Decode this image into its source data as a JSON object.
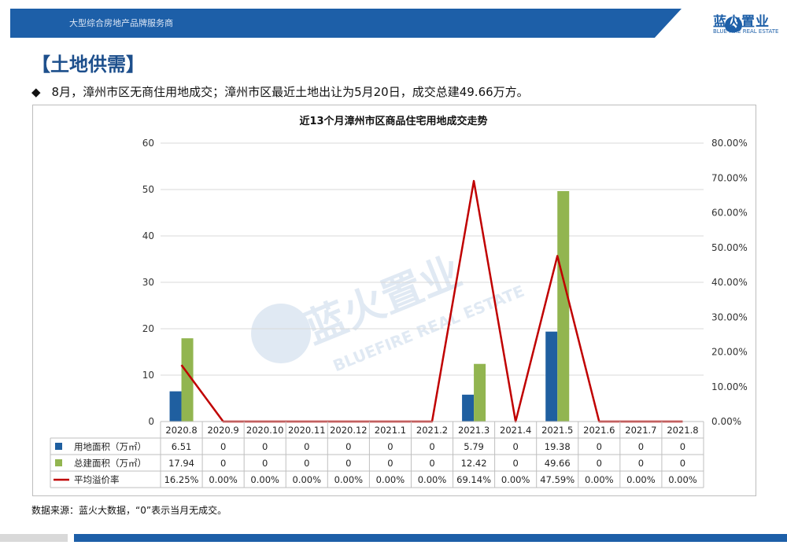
{
  "header": {
    "tagline": "大型综合房地产品牌服务商",
    "logo_text": "蓝火置业",
    "logo_sub": "BLUE FIRE REAL ESTATE"
  },
  "section_title": "【土地供需】",
  "bullet_text": "8月，漳州市区无商住用地成交；漳州市区最近土地出让为5月20日，成交总建49.66万方。",
  "watermark": {
    "main": "蓝火置业",
    "sub": "BLUEFIRE REAL ESTATE"
  },
  "colors": {
    "brand": "#1d5fa8",
    "bar1": "#1f5fa0",
    "bar2": "#92b550",
    "line": "#c00000"
  },
  "chart_data": {
    "type": "bar",
    "title": "近13个月漳州市区商品住宅用地成交走势",
    "categories": [
      "2020.8",
      "2020.9",
      "2020.10",
      "2020.11",
      "2020.12",
      "2021.1",
      "2021.2",
      "2021.3",
      "2021.4",
      "2021.5",
      "2021.6",
      "2021.7",
      "2021.8"
    ],
    "ylim": [
      0,
      60
    ],
    "yticks": [
      "0",
      "10",
      "20",
      "30",
      "40",
      "50",
      "60"
    ],
    "y2lim": [
      0,
      80
    ],
    "y2ticks": [
      "0.00%",
      "10.00%",
      "20.00%",
      "30.00%",
      "40.00%",
      "50.00%",
      "60.00%",
      "70.00%",
      "80.00%"
    ],
    "grid": true,
    "series": [
      {
        "name": "用地面积（万㎡）",
        "kind": "bar",
        "color": "#1f5fa0",
        "values": [
          6.51,
          0,
          0,
          0,
          0,
          0,
          0,
          5.79,
          0,
          19.38,
          0,
          0,
          0
        ],
        "labels": [
          "6.51",
          "0",
          "0",
          "0",
          "0",
          "0",
          "0",
          "5.79",
          "0",
          "19.38",
          "0",
          "0",
          "0"
        ]
      },
      {
        "name": "总建面积（万㎡）",
        "kind": "bar",
        "color": "#92b550",
        "values": [
          17.94,
          0,
          0,
          0,
          0,
          0,
          0,
          12.42,
          0,
          49.66,
          0,
          0,
          0
        ],
        "labels": [
          "17.94",
          "0",
          "0",
          "0",
          "0",
          "0",
          "0",
          "12.42",
          "0",
          "49.66",
          "0",
          "0",
          "0"
        ]
      },
      {
        "name": "平均溢价率",
        "kind": "line",
        "axis": "right",
        "color": "#c00000",
        "values": [
          16.25,
          0,
          0,
          0,
          0,
          0,
          0,
          69.14,
          0,
          47.59,
          0,
          0,
          0
        ],
        "labels": [
          "16.25%",
          "0.00%",
          "0.00%",
          "0.00%",
          "0.00%",
          "0.00%",
          "0.00%",
          "69.14%",
          "0.00%",
          "47.59%",
          "0.00%",
          "0.00%",
          "0.00%"
        ]
      }
    ]
  },
  "source_note": "数据来源：蓝火大数据，“0”表示当月无成交。"
}
